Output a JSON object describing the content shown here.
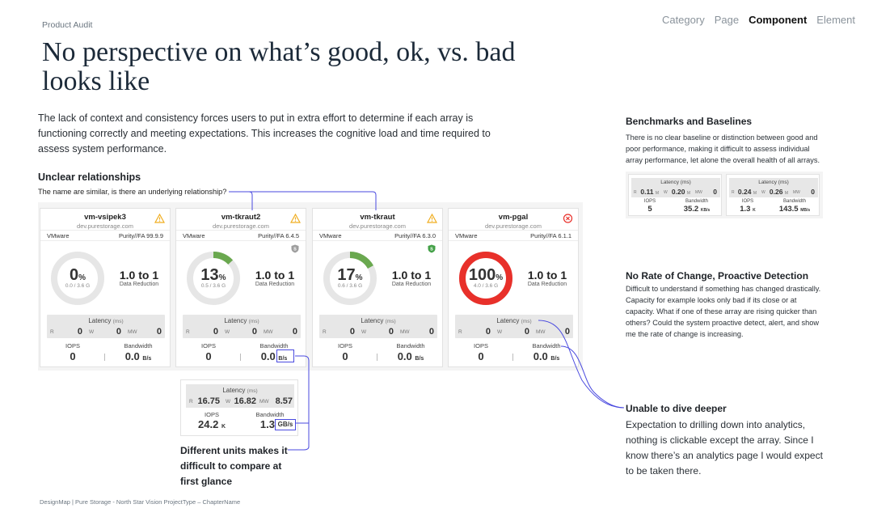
{
  "eyebrow": "Product Audit",
  "nav": {
    "items": [
      "Category",
      "Page",
      "Component",
      "Element"
    ],
    "active": "Component"
  },
  "headline": "No perspective on what’s good, ok, vs. bad looks like",
  "intro": "The lack of context and consistency forces users to put in extra effort to determine if each array is functioning correctly and meeting expectations. This increases the cognitive load and time required to assess system performance.",
  "unclear": {
    "title": "Unclear relationships",
    "text": "The name are similar, is there an underlying relationship?"
  },
  "benchmarks": {
    "title": "Benchmarks and Baselines",
    "text": "There is no clear baseline or distinction between good and poor performance, making it difficult to assess individual array performance, let alone the overall health of all arrays."
  },
  "rate_of_change": {
    "title": "No Rate of Change, Proactive Detection",
    "text": "Difficult to understand if something has changed drastically. Capacity for example looks only bad if its close or at capacity. What if one of these array are rising quicker than others? Could the system proactive detect, alert, and show me the rate of change is increasing."
  },
  "dive_deeper": {
    "title": "Unable to dive deeper",
    "text": "Expectation to drilling down into analytics, nothing is clickable except the array. Since I know there’s an analytics page I would expect to be taken there."
  },
  "units_note": "Different units makes it difficult to compare at first glance",
  "labels": {
    "latency": "Latency",
    "latency_unit": "(ms)",
    "r": "R",
    "w": "W",
    "mw": "MW",
    "iops": "IOPS",
    "bandwidth": "Bandwidth",
    "data_reduction": "Data Reduction"
  },
  "cards": [
    {
      "name": "vm-vsipek3",
      "host": "dev.purestorage.com",
      "vendor": "VMware",
      "version": "Purity//FA 99.9.9",
      "pct": "0",
      "pct_value": 0,
      "capacity": "0.0 / 3.6 G",
      "ratio": "1.0 to 1",
      "r": "0",
      "w": "0",
      "mw": "0",
      "iops": "0",
      "bandwidth": "0.0",
      "bw_unit": "B/s",
      "status": "warning",
      "ring_color": "#7cb342",
      "shield": "none"
    },
    {
      "name": "vm-tkraut2",
      "host": "dev.purestorage.com",
      "vendor": "VMware",
      "version": "Purity//FA 6.4.5",
      "pct": "13",
      "pct_value": 13,
      "capacity": "0.5 / 3.6 G",
      "ratio": "1.0 to 1",
      "r": "0",
      "w": "0",
      "mw": "0",
      "iops": "0",
      "bandwidth": "0.0",
      "bw_unit": "B/s",
      "status": "warning",
      "ring_color": "#6aa84f",
      "shield": "gray"
    },
    {
      "name": "vm-tkraut",
      "host": "dev.purestorage.com",
      "vendor": "VMware",
      "version": "Purity//FA 6.3.0",
      "pct": "17",
      "pct_value": 17,
      "capacity": "0.6 / 3.6 G",
      "ratio": "1.0 to 1",
      "r": "0",
      "w": "0",
      "mw": "0",
      "iops": "0",
      "bandwidth": "0.0",
      "bw_unit": "B/s",
      "status": "warning",
      "ring_color": "#6aa84f",
      "shield": "green"
    },
    {
      "name": "vm-pgal",
      "host": "dev.purestorage.com",
      "vendor": "VMware",
      "version": "Purity//FA 6.1.1",
      "pct": "100",
      "pct_value": 100,
      "capacity": "4.0 / 3.6 G",
      "ratio": "1.0 to 1",
      "r": "0",
      "w": "0",
      "mw": "0",
      "iops": "0",
      "bandwidth": "0.0",
      "bw_unit": "B/s",
      "status": "error",
      "ring_color": "#e8302a",
      "shield": "none"
    }
  ],
  "units_panel": {
    "r": "16.75",
    "w": "16.82",
    "mw": "8.57",
    "iops": "24.2",
    "iops_unit": "K",
    "bandwidth": "1.3",
    "bw_unit": "GB/s"
  },
  "bench_panels": [
    {
      "r": "0.11",
      "r_unit": "M",
      "w": "0.20",
      "w_unit": "M",
      "mw": "0",
      "iops": "5",
      "iops_unit": "",
      "bandwidth": "35.2",
      "bw_unit": "KB/s"
    },
    {
      "r": "0.24",
      "r_unit": "M",
      "w": "0.26",
      "w_unit": "M",
      "mw": "0",
      "iops": "1.3",
      "iops_unit": "K",
      "bandwidth": "143.5",
      "bw_unit": "MB/s"
    }
  ],
  "footer": "DesignMap   |   Pure Storage - North Star Vision    ProjectType – ChapterName",
  "colors": {
    "callout_line": "#4a4adf",
    "warning": "#f0ad1f",
    "error": "#e8302a",
    "ring_track": "#e6e6e6"
  }
}
